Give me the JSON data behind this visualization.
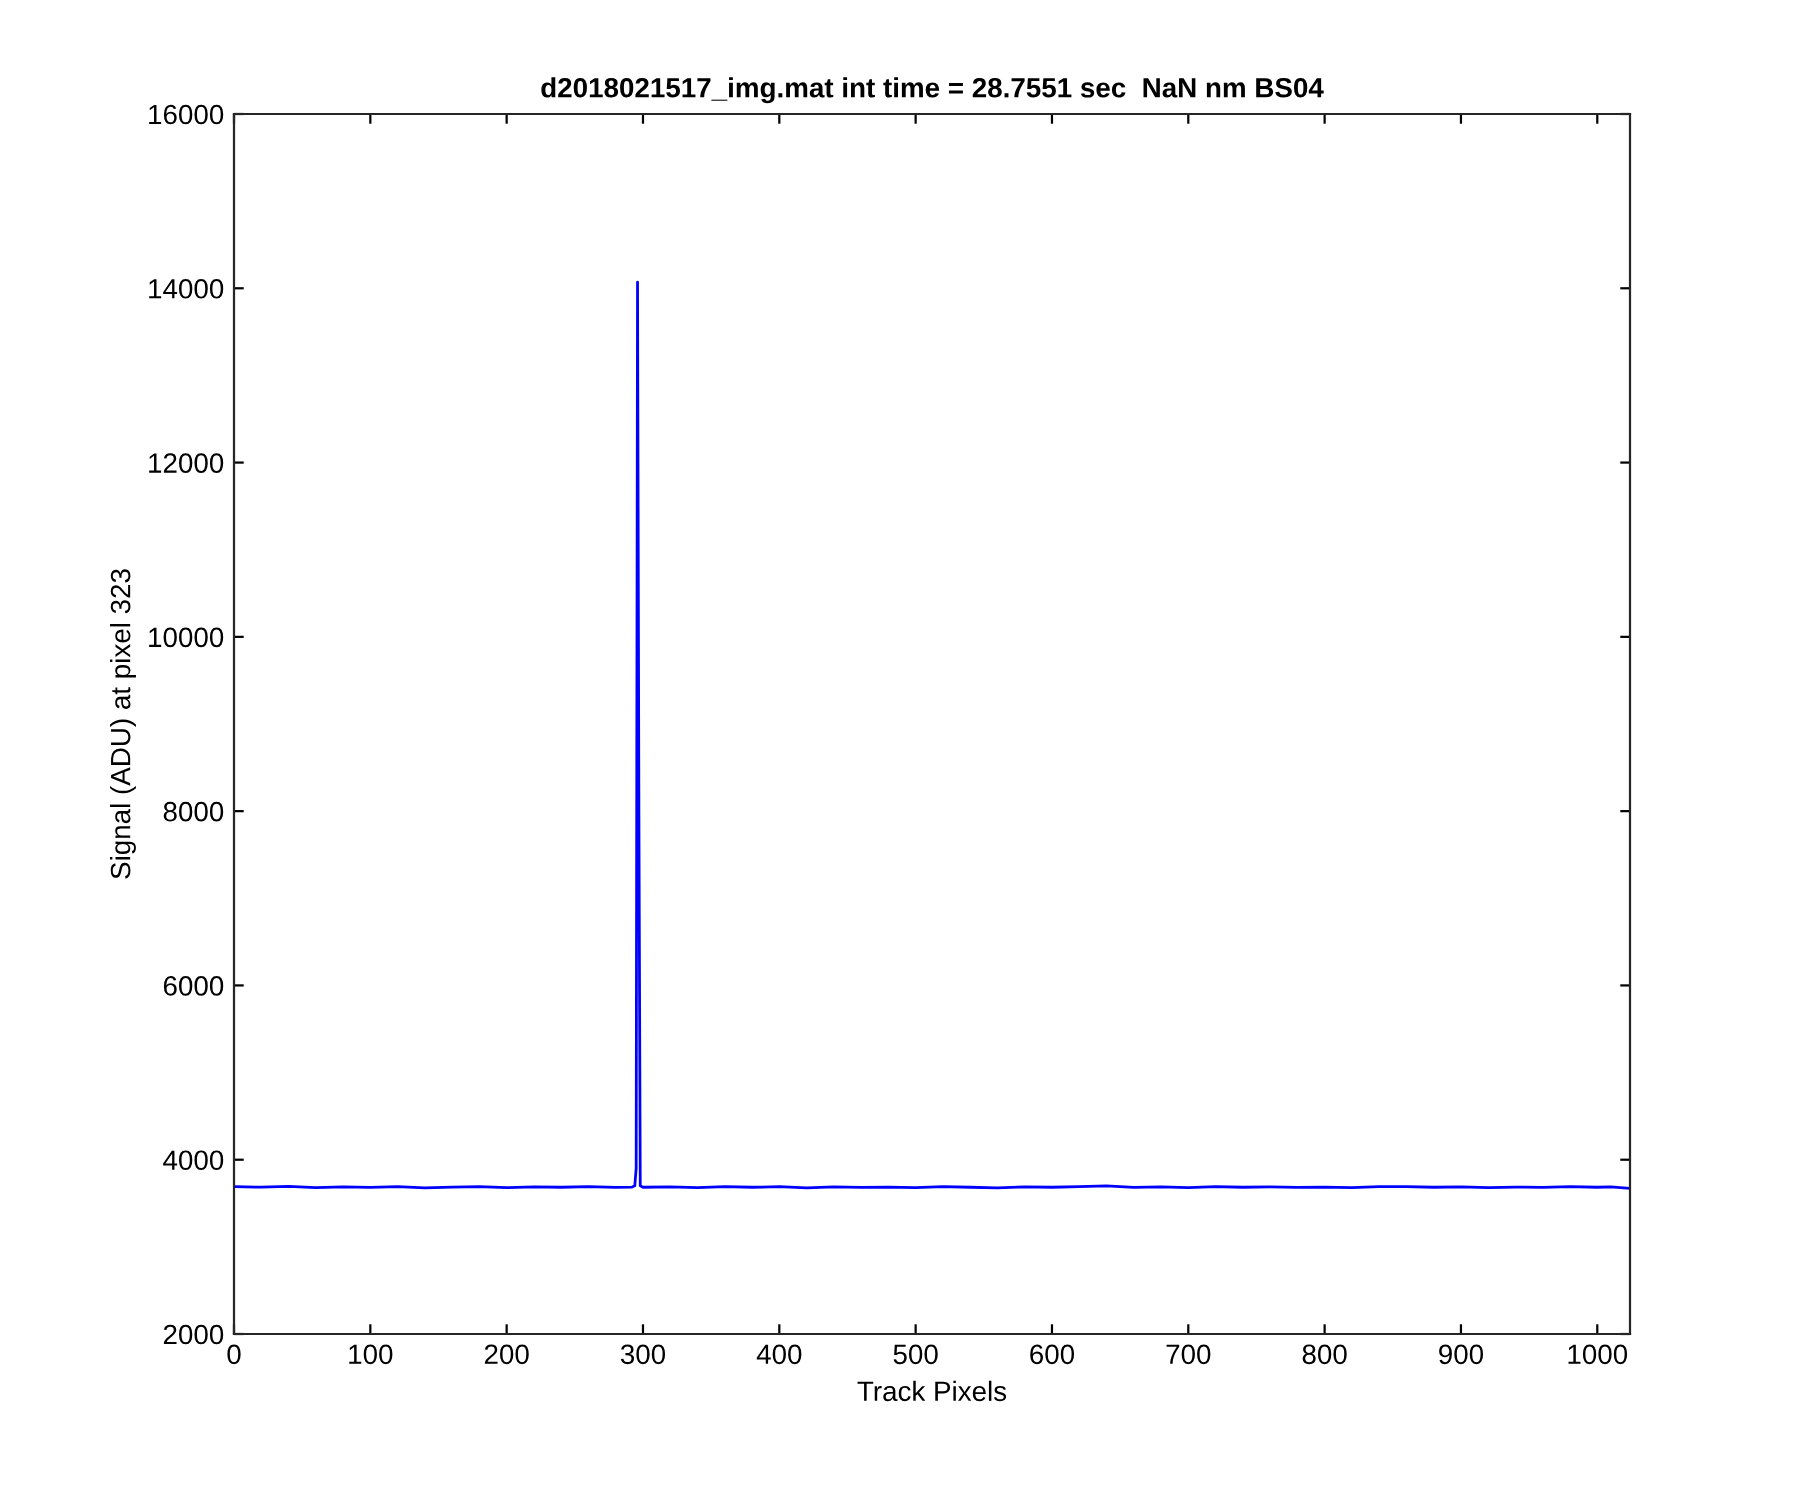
{
  "chart_data": {
    "type": "line",
    "title": "d2018021517_img.mat int time = 28.7551 sec  NaN nm BS04",
    "xlabel": "Track Pixels",
    "ylabel": "Signal (ADU) at pixel 323",
    "series": [
      {
        "color": "#0000ff",
        "x": [
          1,
          20,
          40,
          60,
          80,
          100,
          120,
          140,
          160,
          180,
          200,
          220,
          240,
          260,
          280,
          292,
          294,
          295,
          296,
          297,
          298,
          300,
          320,
          340,
          360,
          380,
          400,
          420,
          440,
          460,
          480,
          500,
          520,
          540,
          560,
          580,
          600,
          620,
          640,
          660,
          680,
          700,
          720,
          740,
          760,
          780,
          800,
          820,
          840,
          860,
          880,
          900,
          920,
          940,
          960,
          980,
          1000,
          1010,
          1024
        ],
        "values": [
          3690,
          3685,
          3695,
          3680,
          3688,
          3682,
          3690,
          3678,
          3686,
          3692,
          3680,
          3688,
          3684,
          3690,
          3682,
          3686,
          3700,
          3900,
          14070,
          8000,
          3700,
          3684,
          3688,
          3680,
          3692,
          3684,
          3690,
          3678,
          3688,
          3682,
          3686,
          3680,
          3690,
          3684,
          3678,
          3688,
          3684,
          3692,
          3700,
          3682,
          3688,
          3680,
          3690,
          3684,
          3688,
          3682,
          3686,
          3680,
          3690,
          3692,
          3684,
          3688,
          3680,
          3686,
          3682,
          3690,
          3684,
          3688,
          3670
        ]
      }
    ],
    "xlim": [
      0,
      1024
    ],
    "ylim": [
      2000,
      16000
    ],
    "xticks": [
      0,
      100,
      200,
      300,
      400,
      500,
      600,
      700,
      800,
      900,
      1000
    ],
    "yticks": [
      2000,
      4000,
      6000,
      8000,
      10000,
      12000,
      14000,
      16000
    ],
    "grid": false,
    "legend": false,
    "marker": "none",
    "line_style": "solid"
  }
}
